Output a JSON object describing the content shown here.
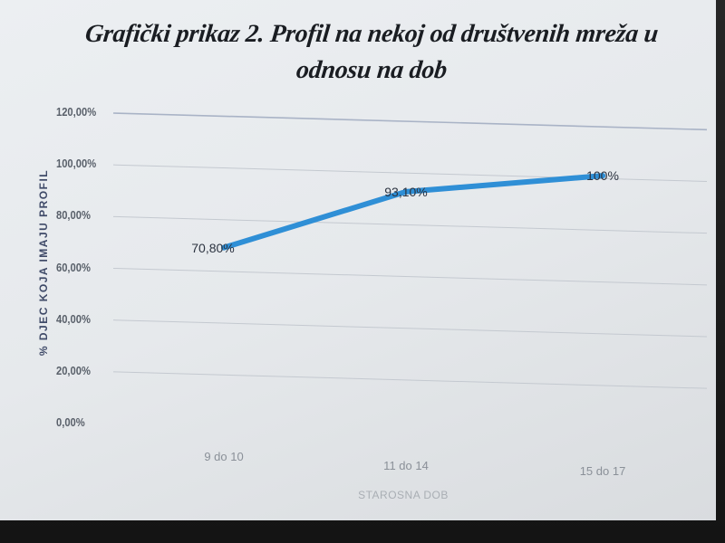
{
  "chart_data": {
    "type": "line",
    "title": "Grafički prikaz 2. Profil na nekoj od društvenih mreža u odnosu na dob",
    "title_lines": [
      "Grafički prikaz 2. Profil na nekoj od društvenih mreža u",
      "odnosu na dob"
    ],
    "xlabel": "STAROSNA DOB",
    "ylabel": "% DJEC KOJA IMAJU PROFIL",
    "categories": [
      "9 do 10",
      "11 do 14",
      "15 do 17"
    ],
    "series": [
      {
        "values": [
          70.8,
          93.1,
          100
        ],
        "data_labels": [
          "70,80%",
          "93,10%",
          "100%"
        ],
        "color": "#2f8fd6"
      }
    ],
    "ylim": [
      0,
      120
    ],
    "yticks": [
      0,
      20,
      40,
      60,
      80,
      100,
      120
    ],
    "ytick_labels": [
      "0,00%",
      "20,00%",
      "40,00%",
      "60,00%",
      "80,00%",
      "100,00%",
      "120,00%"
    ],
    "grid": true,
    "legend": "none"
  },
  "colors": {
    "line": "#2f8fd6",
    "gridline": "#c4c9d0",
    "screen_background": "#eceff2",
    "frame": "#1c1c1c"
  }
}
